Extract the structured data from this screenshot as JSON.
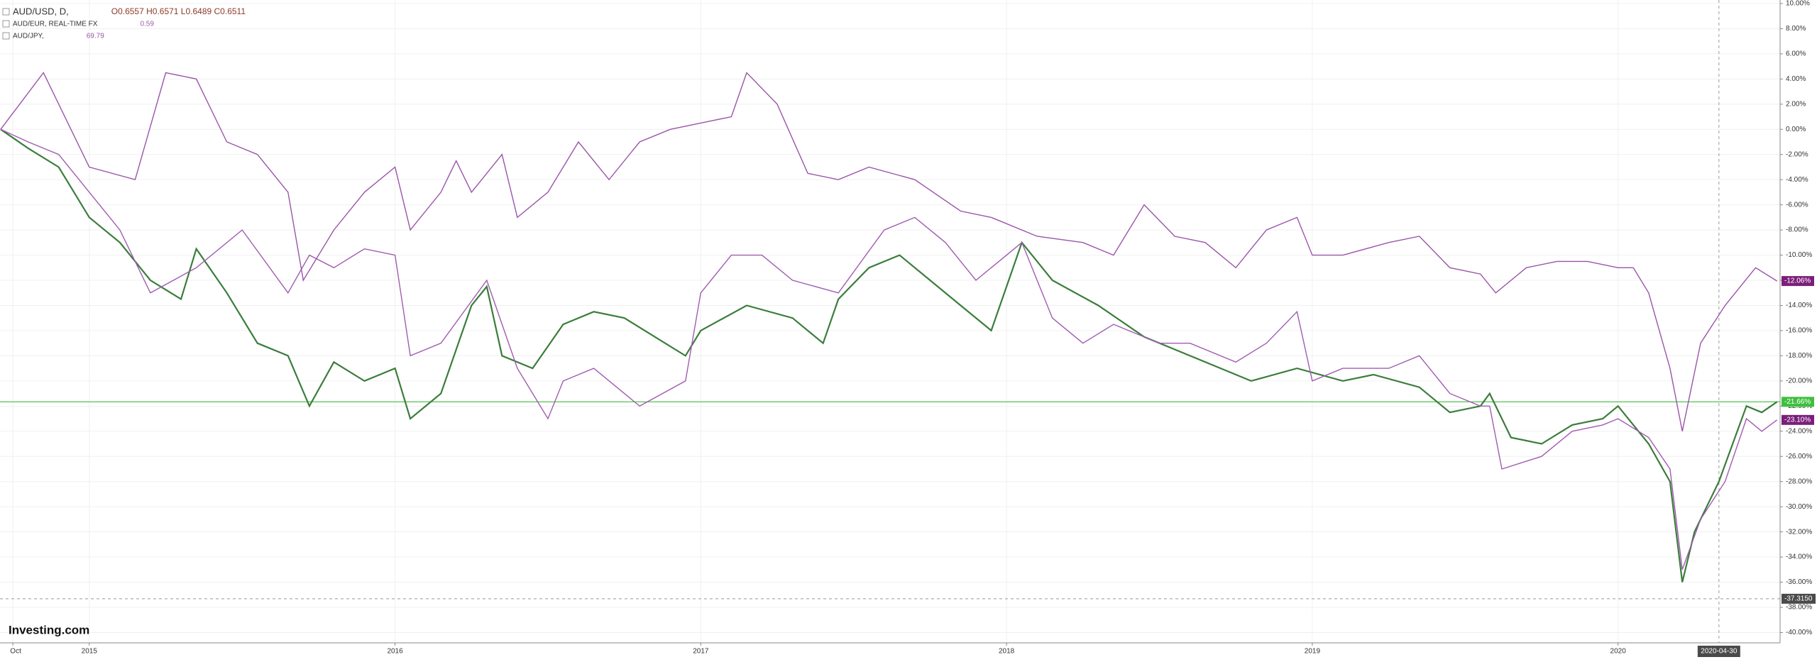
{
  "chart_data": {
    "type": "line",
    "watermark": "Investing.com",
    "xlim": [
      2014.708,
      2020.53
    ],
    "ylim": [
      -40.82,
      10.28
    ],
    "xticks": [
      {
        "value": 2014.75,
        "label": "Oct"
      },
      2015,
      2016,
      2017,
      2018,
      2019,
      2020
    ],
    "yticks": [
      {
        "value": 10,
        "label": "10.00%"
      },
      {
        "value": 8,
        "label": "8.00%"
      },
      {
        "value": 6,
        "label": "6.00%"
      },
      {
        "value": 4,
        "label": "4.00%"
      },
      {
        "value": 2,
        "label": "2.00%"
      },
      {
        "value": 0,
        "label": "0.00%"
      },
      {
        "value": -2,
        "label": "-2.00%"
      },
      {
        "value": -4,
        "label": "-4.00%"
      },
      {
        "value": -6,
        "label": "-6.00%"
      },
      {
        "value": -8,
        "label": "-8.00%"
      },
      {
        "value": -10,
        "label": "-10.00%"
      },
      {
        "value": -12,
        "label": "-12.00%"
      },
      {
        "value": -14,
        "label": "-14.00%"
      },
      {
        "value": -16,
        "label": "-16.00%"
      },
      {
        "value": -18,
        "label": "-18.00%"
      },
      {
        "value": -20,
        "label": "-20.00%"
      },
      {
        "value": -22,
        "label": "-22.00%"
      },
      {
        "value": -24,
        "label": "-24.00%"
      },
      {
        "value": -26,
        "label": "-26.00%"
      },
      {
        "value": -28,
        "label": "-28.00%"
      },
      {
        "value": -30,
        "label": "-30.00%"
      },
      {
        "value": -32,
        "label": "-32.00%"
      },
      {
        "value": -34,
        "label": "-34.00%"
      },
      {
        "value": -36,
        "label": "-36.00%"
      },
      {
        "value": -38,
        "label": "-38.00%"
      },
      {
        "value": -40,
        "label": "-40.00%"
      }
    ],
    "grid": true,
    "crosshair": {
      "x": {
        "value": 2020.33,
        "label": "2020-04-30"
      },
      "y": {
        "value": -37.315,
        "label": "-37.3150"
      }
    },
    "price_line": {
      "value": -21.66,
      "label": "-21.66%",
      "color": "#3fbf3f"
    },
    "series": [
      {
        "name": "AUD/USD, D,",
        "quote": "O0.6557 H0.6571 L0.6489 C0.6511",
        "color": "#3b7d3b",
        "x": [
          2014.71,
          2014.8,
          2014.9,
          2015.0,
          2015.1,
          2015.2,
          2015.3,
          2015.35,
          2015.45,
          2015.55,
          2015.65,
          2015.72,
          2015.8,
          2015.9,
          2016.0,
          2016.05,
          2016.15,
          2016.25,
          2016.3,
          2016.35,
          2016.45,
          2016.55,
          2016.65,
          2016.75,
          2016.85,
          2016.95,
          2017.0,
          2017.15,
          2017.3,
          2017.4,
          2017.45,
          2017.55,
          2017.65,
          2017.75,
          2017.85,
          2017.95,
          2018.05,
          2018.15,
          2018.3,
          2018.45,
          2018.55,
          2018.7,
          2018.8,
          2018.95,
          2019.1,
          2019.2,
          2019.35,
          2019.45,
          2019.55,
          2019.58,
          2019.65,
          2019.75,
          2019.85,
          2019.95,
          2020.0,
          2020.1,
          2020.17,
          2020.21,
          2020.25,
          2020.33,
          2020.42,
          2020.47,
          2020.52
        ],
        "values": [
          0,
          -1.5,
          -3,
          -7,
          -9,
          -12,
          -13.5,
          -9.5,
          -13,
          -17,
          -18,
          -22,
          -18.5,
          -20,
          -19,
          -23,
          -21,
          -14,
          -12.5,
          -18,
          -19,
          -15.5,
          -14.5,
          -15,
          -16.5,
          -18,
          -16,
          -14,
          -15,
          -17,
          -13.5,
          -11,
          -10,
          -12,
          -14,
          -16,
          -9,
          -12,
          -14,
          -16.5,
          -17.5,
          -19,
          -20,
          -19,
          -20,
          -19.5,
          -20.5,
          -22.5,
          -22,
          -21,
          -24.5,
          -25,
          -23.5,
          -23,
          -22,
          -25,
          -28,
          -36,
          -32,
          -28,
          -22,
          -22.5,
          -21.66
        ]
      },
      {
        "name": "AUD/EUR, REAL-TIME FX",
        "quote": "0.59",
        "color": "#a05cb0",
        "last_label": "-23.10%",
        "x": [
          2014.71,
          2014.8,
          2014.9,
          2015.0,
          2015.1,
          2015.2,
          2015.35,
          2015.5,
          2015.65,
          2015.72,
          2015.8,
          2015.9,
          2016.0,
          2016.05,
          2016.15,
          2016.3,
          2016.4,
          2016.5,
          2016.55,
          2016.65,
          2016.8,
          2016.95,
          2017.0,
          2017.1,
          2017.2,
          2017.3,
          2017.45,
          2017.6,
          2017.7,
          2017.8,
          2017.9,
          2018.05,
          2018.15,
          2018.25,
          2018.35,
          2018.5,
          2018.6,
          2018.75,
          2018.85,
          2018.95,
          2019.0,
          2019.1,
          2019.25,
          2019.35,
          2019.45,
          2019.55,
          2019.58,
          2019.62,
          2019.75,
          2019.85,
          2019.95,
          2020.0,
          2020.1,
          2020.17,
          2020.21,
          2020.27,
          2020.35,
          2020.42,
          2020.47,
          2020.52
        ],
        "values": [
          0,
          -1,
          -2,
          -5,
          -8,
          -13,
          -11,
          -8,
          -13,
          -10,
          -11,
          -9.5,
          -10,
          -18,
          -17,
          -12,
          -19,
          -23,
          -20,
          -19,
          -22,
          -20,
          -13,
          -10,
          -10,
          -12,
          -13,
          -8,
          -7,
          -9,
          -12,
          -9,
          -15,
          -17,
          -15.5,
          -17,
          -17,
          -18.5,
          -17,
          -14.5,
          -20,
          -19,
          -19,
          -18,
          -21,
          -22,
          -22,
          -27,
          -26,
          -24,
          -23.5,
          -23,
          -24.5,
          -27,
          -35,
          -31,
          -28,
          -23,
          -24,
          -23.1
        ]
      },
      {
        "name": "AUD/JPY,",
        "quote": "69.79",
        "color": "#9a55a8",
        "last_label": "-12.06%",
        "x": [
          2014.71,
          2014.85,
          2015.0,
          2015.15,
          2015.25,
          2015.35,
          2015.45,
          2015.55,
          2015.65,
          2015.7,
          2015.8,
          2015.9,
          2016.0,
          2016.05,
          2016.15,
          2016.2,
          2016.25,
          2016.35,
          2016.4,
          2016.5,
          2016.6,
          2016.7,
          2016.8,
          2016.9,
          2017.0,
          2017.1,
          2017.15,
          2017.25,
          2017.35,
          2017.45,
          2017.55,
          2017.7,
          2017.85,
          2017.95,
          2018.1,
          2018.25,
          2018.35,
          2018.45,
          2018.55,
          2018.65,
          2018.75,
          2018.85,
          2018.95,
          2019.0,
          2019.1,
          2019.25,
          2019.35,
          2019.45,
          2019.55,
          2019.6,
          2019.7,
          2019.8,
          2019.9,
          2020.0,
          2020.05,
          2020.1,
          2020.17,
          2020.21,
          2020.27,
          2020.35,
          2020.45,
          2020.52
        ],
        "values": [
          0,
          4.5,
          -3,
          -4,
          4.5,
          4,
          -1,
          -2,
          -5,
          -12,
          -8,
          -5,
          -3,
          -8,
          -5,
          -2.5,
          -5,
          -2,
          -7,
          -5,
          -1,
          -4,
          -1,
          0,
          0.5,
          1,
          4.5,
          2,
          -3.5,
          -4,
          -3,
          -4,
          -6.5,
          -7,
          -8.5,
          -9,
          -10,
          -6,
          -8.5,
          -9,
          -11,
          -8,
          -7,
          -10,
          -10,
          -9,
          -8.5,
          -11,
          -11.5,
          -13,
          -11,
          -10.5,
          -10.5,
          -11,
          -11,
          -13,
          -19,
          -24,
          -17,
          -14,
          -11,
          -12.06
        ]
      }
    ]
  }
}
